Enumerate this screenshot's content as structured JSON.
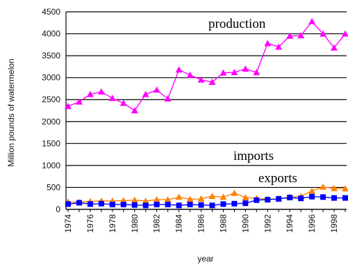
{
  "chart_data": {
    "type": "line",
    "xlabel": "year",
    "ylabel": "Million pounds of watermelon",
    "ylim": [
      0,
      4500
    ],
    "xlim": [
      1974,
      1999
    ],
    "yticks": [
      "0",
      "500",
      "1000",
      "1500",
      "2000",
      "2500",
      "3000",
      "3500",
      "4000",
      "4500"
    ],
    "xticks": [
      "1974",
      "1976",
      "1978",
      "1980",
      "1982",
      "1984",
      "1986",
      "1988",
      "1990",
      "1992",
      "1994",
      "1996",
      "1998"
    ],
    "grid": "horizontal",
    "annotations": [
      "production",
      "imports",
      "exports"
    ],
    "x": [
      1974,
      1975,
      1976,
      1977,
      1978,
      1979,
      1980,
      1981,
      1982,
      1983,
      1984,
      1985,
      1986,
      1987,
      1988,
      1989,
      1990,
      1991,
      1992,
      1993,
      1994,
      1995,
      1996,
      1997,
      1998,
      1999
    ],
    "series": [
      {
        "name": "production",
        "color": "#ff00ff",
        "marker": "triangle",
        "values": [
          2350,
          2450,
          2620,
          2680,
          2530,
          2420,
          2250,
          2620,
          2720,
          2520,
          3180,
          3060,
          2950,
          2900,
          3110,
          3120,
          3200,
          3120,
          3780,
          3700,
          3950,
          3960,
          4280,
          4000,
          3680,
          4000
        ]
      },
      {
        "name": "imports",
        "color": "#ff8000",
        "marker": "triangle",
        "values": [
          170,
          160,
          180,
          190,
          190,
          200,
          210,
          190,
          220,
          220,
          280,
          230,
          240,
          300,
          280,
          370,
          270,
          250,
          230,
          240,
          280,
          300,
          420,
          510,
          480,
          470
        ]
      },
      {
        "name": "exports",
        "color": "#0000ff",
        "marker": "square",
        "values": [
          120,
          150,
          120,
          130,
          110,
          110,
          100,
          90,
          110,
          110,
          90,
          110,
          100,
          90,
          120,
          130,
          140,
          210,
          220,
          240,
          270,
          250,
          290,
          280,
          260,
          260
        ]
      }
    ]
  }
}
